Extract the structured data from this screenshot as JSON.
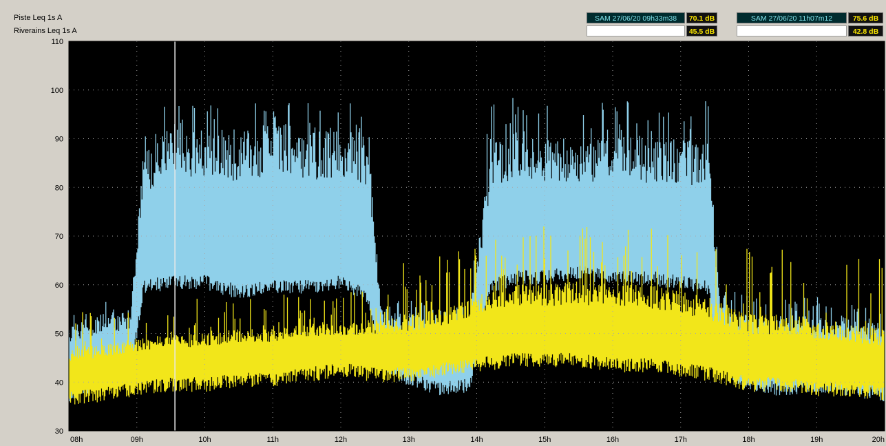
{
  "channels": {
    "piste": {
      "label": "Piste   Leq 1s  A",
      "cursor1_date": "SAM 27/06/20 09h33m38",
      "cursor1_value": "70.1 dB",
      "cursor2_date": "SAM 27/06/20 11h07m12",
      "cursor2_value": "75.6 dB"
    },
    "riverains": {
      "label": "Riverains   Leq 1s  A",
      "cursor1_value": "45.5 dB",
      "cursor2_value": "42.8 dB"
    }
  },
  "colors": {
    "plot_background": "#000000",
    "grid": "#a8a8a8",
    "piste_series": "#8fd0ea",
    "riverains_series": "#f2e61a",
    "cursor_line": "#e8e8e8",
    "window_background": "#d4d0c8"
  },
  "chart_data": {
    "type": "area",
    "title": "",
    "xlabel": "",
    "ylabel": "",
    "ylim": [
      30,
      110
    ],
    "yticks": [
      30,
      40,
      50,
      60,
      70,
      80,
      90,
      100,
      110
    ],
    "grid": true,
    "xlim_hours": [
      8,
      20
    ],
    "xtick_hours": [
      8,
      9,
      10,
      11,
      12,
      13,
      14,
      15,
      16,
      17,
      18,
      19,
      20
    ],
    "xtick_labels": [
      "08h",
      "09h",
      "10h",
      "11h",
      "12h",
      "13h",
      "14h",
      "15h",
      "16h",
      "17h",
      "18h",
      "19h",
      "20h"
    ],
    "cursor_time": "09h33m38",
    "series": [
      {
        "name": "Piste",
        "time_hours": [
          8,
          8.5,
          8.9,
          9.1,
          9.5,
          10,
          10.5,
          11,
          11.5,
          12,
          12.4,
          12.6,
          13,
          13.5,
          13.9,
          14.2,
          14.6,
          15,
          15.5,
          16,
          16.5,
          17,
          17.4,
          17.6,
          18,
          18.5,
          19,
          19.5,
          20
        ],
        "lower_db": [
          40,
          42,
          43,
          62,
          63,
          63,
          61,
          62,
          62,
          63,
          60,
          46,
          43,
          41,
          42,
          62,
          64,
          64,
          65,
          64,
          64,
          63,
          62,
          46,
          42,
          41,
          42,
          41,
          40
        ],
        "upper_db": [
          52,
          54,
          55,
          88,
          92,
          92,
          92,
          93,
          92,
          92,
          91,
          55,
          54,
          52,
          54,
          89,
          92,
          90,
          89,
          91,
          90,
          90,
          89,
          56,
          54,
          53,
          54,
          53,
          52
        ],
        "peak_db": [
          55,
          58,
          60,
          97,
          97,
          98,
          99,
          98,
          99,
          98,
          97,
          58,
          58,
          55,
          58,
          98,
          99,
          97,
          95,
          100,
          97,
          98,
          98,
          60,
          58,
          57,
          58,
          57,
          56
        ]
      },
      {
        "name": "Riverains",
        "time_hours": [
          8,
          8.5,
          9,
          9.5,
          10,
          10.5,
          11,
          11.5,
          12,
          12.5,
          13,
          13.5,
          14,
          14.5,
          15,
          15.5,
          16,
          16.5,
          17,
          17.5,
          18,
          18.5,
          19,
          19.5,
          20
        ],
        "lower_db": [
          39,
          40,
          41,
          42,
          42,
          43,
          43,
          44,
          45,
          44,
          44,
          45,
          46,
          47,
          47,
          47,
          46,
          46,
          45,
          44,
          42,
          42,
          41,
          41,
          40
        ],
        "upper_db": [
          47,
          48,
          49,
          50,
          50,
          51,
          51,
          52,
          52,
          53,
          54,
          55,
          58,
          60,
          60,
          61,
          60,
          60,
          59,
          57,
          54,
          54,
          53,
          52,
          51
        ],
        "peak_db": [
          54,
          56,
          57,
          58,
          57,
          58,
          58,
          59,
          60,
          62,
          66,
          67,
          69,
          73,
          72,
          73,
          71,
          72,
          71,
          69,
          68,
          70,
          69,
          68,
          66
        ]
      }
    ]
  }
}
